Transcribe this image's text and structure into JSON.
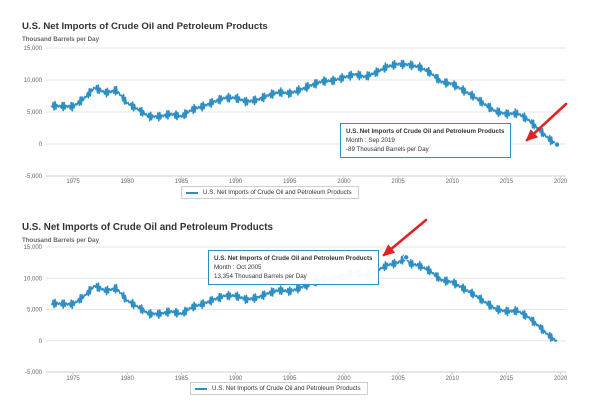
{
  "colors": {
    "series": "#2e8fc4",
    "arrow": "#e02424",
    "grid": "#e6e6e6"
  },
  "chart_data": [
    {
      "type": "line",
      "title": "U.S. Net Imports of Crude Oil and Petroleum Products",
      "ylabel": "Thousand Barrels per Day",
      "xlabel": "",
      "ylim": [
        -5000,
        15000
      ],
      "xlim": [
        1972.5,
        2020.5
      ],
      "yticks": [
        -5000,
        0,
        5000,
        10000,
        15000
      ],
      "ytick_labels": [
        "-5,000",
        "0",
        "5,000",
        "10,000",
        "15,000"
      ],
      "xticks": [
        1975,
        1980,
        1985,
        1990,
        1995,
        2000,
        2005,
        2010,
        2015,
        2020
      ],
      "xtick_labels": [
        "1975",
        "1980",
        "1985",
        "1990",
        "1995",
        "2000",
        "2005",
        "2010",
        "2015",
        "2020"
      ],
      "legend": {
        "label": "U.S. Net Imports of Crude Oil and Petroleum Products",
        "position": "bottom-center"
      },
      "tooltip": {
        "title": "U.S. Net Imports of Crude Oil and Petroleum Products",
        "month": "Month : Sep 2019",
        "value": "-89 Thousand Barrels per Day"
      },
      "highlight": {
        "x": 2019.67,
        "y": -89
      },
      "series": [
        {
          "name": "U.S. Net Imports of Crude Oil and Petroleum Products",
          "x": [
            1973,
            1974,
            1975,
            1976,
            1977,
            1978,
            1979,
            1980,
            1981,
            1982,
            1983,
            1984,
            1985,
            1986,
            1987,
            1988,
            1989,
            1990,
            1991,
            1992,
            1993,
            1994,
            1995,
            1996,
            1997,
            1998,
            1999,
            2000,
            2001,
            2002,
            2003,
            2004,
            2005,
            2006,
            2007,
            2008,
            2009,
            2010,
            2011,
            2012,
            2013,
            2014,
            2015,
            2016,
            2017,
            2018,
            2019,
            2019.67
          ],
          "values": [
            6000,
            5900,
            5850,
            7100,
            8800,
            8000,
            8400,
            6400,
            5400,
            4300,
            4300,
            4700,
            4300,
            5400,
            5900,
            6600,
            7200,
            7200,
            6600,
            6900,
            7600,
            8100,
            7900,
            8500,
            9200,
            9800,
            9900,
            10400,
            10900,
            10500,
            11200,
            12100,
            12500,
            12400,
            12000,
            11100,
            9700,
            9400,
            8400,
            7400,
            6200,
            5100,
            4700,
            4800,
            3800,
            2300,
            700,
            -89
          ]
        }
      ]
    },
    {
      "type": "line",
      "title": "U.S. Net Imports of Crude Oil and Petroleum Products",
      "ylabel": "Thousand Barrels per Day",
      "xlabel": "",
      "ylim": [
        -5000,
        15000
      ],
      "xlim": [
        1972.5,
        2020.5
      ],
      "yticks": [
        -5000,
        0,
        5000,
        10000,
        15000
      ],
      "ytick_labels": [
        "-5,000",
        "0",
        "5,000",
        "10,000",
        "15,000"
      ],
      "xticks": [
        1975,
        1980,
        1985,
        1990,
        1995,
        2000,
        2005,
        2010,
        2015,
        2020
      ],
      "xtick_labels": [
        "1975",
        "1980",
        "1985",
        "1990",
        "1995",
        "2000",
        "2005",
        "2010",
        "2015",
        "2020"
      ],
      "legend": {
        "label": "U.S. Net Imports of Crude Oil and Petroleum Products",
        "position": "bottom-center"
      },
      "tooltip": {
        "title": "U.S. Net Imports of Crude Oil and Petroleum Products",
        "month": "Month : Oct 2005",
        "value": "13,354 Thousand Barrels per Day"
      },
      "highlight": {
        "x": 2005.75,
        "y": 13354
      },
      "series": [
        {
          "name": "U.S. Net Imports of Crude Oil and Petroleum Products",
          "x": [
            1973,
            1974,
            1975,
            1976,
            1977,
            1978,
            1979,
            1980,
            1981,
            1982,
            1983,
            1984,
            1985,
            1986,
            1987,
            1988,
            1989,
            1990,
            1991,
            1992,
            1993,
            1994,
            1995,
            1996,
            1997,
            1998,
            1999,
            2000,
            2001,
            2002,
            2003,
            2004,
            2005,
            2005.75,
            2006,
            2007,
            2008,
            2009,
            2010,
            2011,
            2012,
            2013,
            2014,
            2015,
            2016,
            2017,
            2018,
            2019,
            2019.67
          ],
          "values": [
            6000,
            5900,
            5850,
            7100,
            8800,
            8000,
            8400,
            6400,
            5400,
            4300,
            4300,
            4700,
            4300,
            5400,
            5900,
            6600,
            7200,
            7200,
            6600,
            6900,
            7600,
            8100,
            7900,
            8500,
            9200,
            9800,
            9900,
            10400,
            10900,
            10500,
            11200,
            12100,
            12500,
            13354,
            12400,
            12000,
            11100,
            9700,
            9400,
            8400,
            7400,
            6200,
            5100,
            4700,
            4800,
            3800,
            2300,
            700,
            -89
          ]
        }
      ]
    }
  ]
}
